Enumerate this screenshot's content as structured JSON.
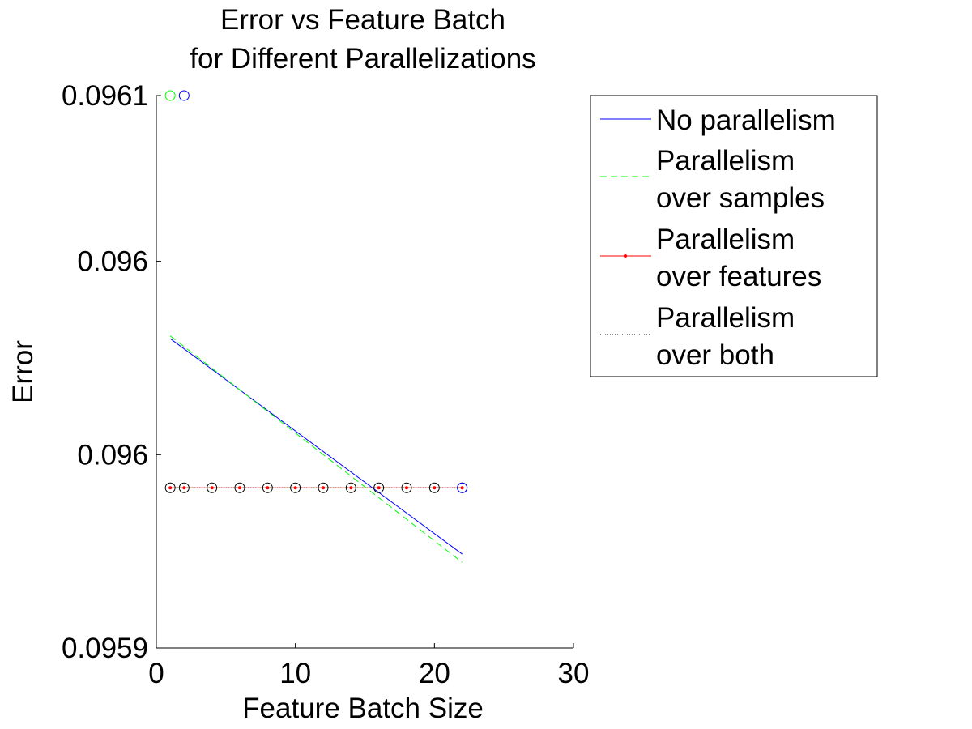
{
  "chart_data": {
    "type": "line",
    "title": [
      "Error vs Feature Batch",
      "for Different Parallelizations"
    ],
    "xlabel": "Feature Batch Size",
    "ylabel": "Error",
    "xlim": [
      0,
      30
    ],
    "ylim": [
      0.0959,
      0.0961
    ],
    "xticks": [
      0,
      10,
      20,
      30
    ],
    "xtick_labels": [
      "0",
      "10",
      "20",
      "30"
    ],
    "yticks": [
      0.0959,
      0.09597,
      0.09604,
      0.0961
    ],
    "ytick_labels": [
      "0.0959",
      "0.096",
      "0.096",
      "0.0961"
    ],
    "grid": false,
    "legend_position": "top-right outside",
    "series": [
      {
        "name": "No parallelism",
        "color": "#0000ff",
        "style": "solid",
        "line": [
          [
            1,
            0.096012
          ],
          [
            22,
            0.095934
          ]
        ],
        "markers": [
          [
            2,
            0.0961
          ],
          [
            22,
            0.095958
          ]
        ]
      },
      {
        "name": "Parallelism\nover samples",
        "color": "#00ff00",
        "style": "dashed",
        "line": [
          [
            1,
            0.096013
          ],
          [
            22,
            0.095931
          ]
        ],
        "markers": [
          [
            1,
            0.0961
          ]
        ]
      },
      {
        "name": "Parallelism\nover features",
        "color": "#ff0000",
        "style": "solid-dot",
        "x": [
          1,
          2,
          4,
          6,
          8,
          10,
          12,
          14,
          16,
          18,
          20,
          22
        ],
        "y": [
          0.095958,
          0.095958,
          0.095958,
          0.095958,
          0.095958,
          0.095958,
          0.095958,
          0.095958,
          0.095958,
          0.095958,
          0.095958,
          0.095958
        ]
      },
      {
        "name": "Parallelism\nover both",
        "color": "#000000",
        "style": "dotted-circle",
        "x": [
          1,
          2,
          4,
          6,
          8,
          10,
          12,
          14,
          16,
          18,
          20,
          22
        ],
        "y": [
          0.095958,
          0.095958,
          0.095958,
          0.095958,
          0.095958,
          0.095958,
          0.095958,
          0.095958,
          0.095958,
          0.095958,
          0.095958,
          0.095958
        ]
      }
    ]
  }
}
